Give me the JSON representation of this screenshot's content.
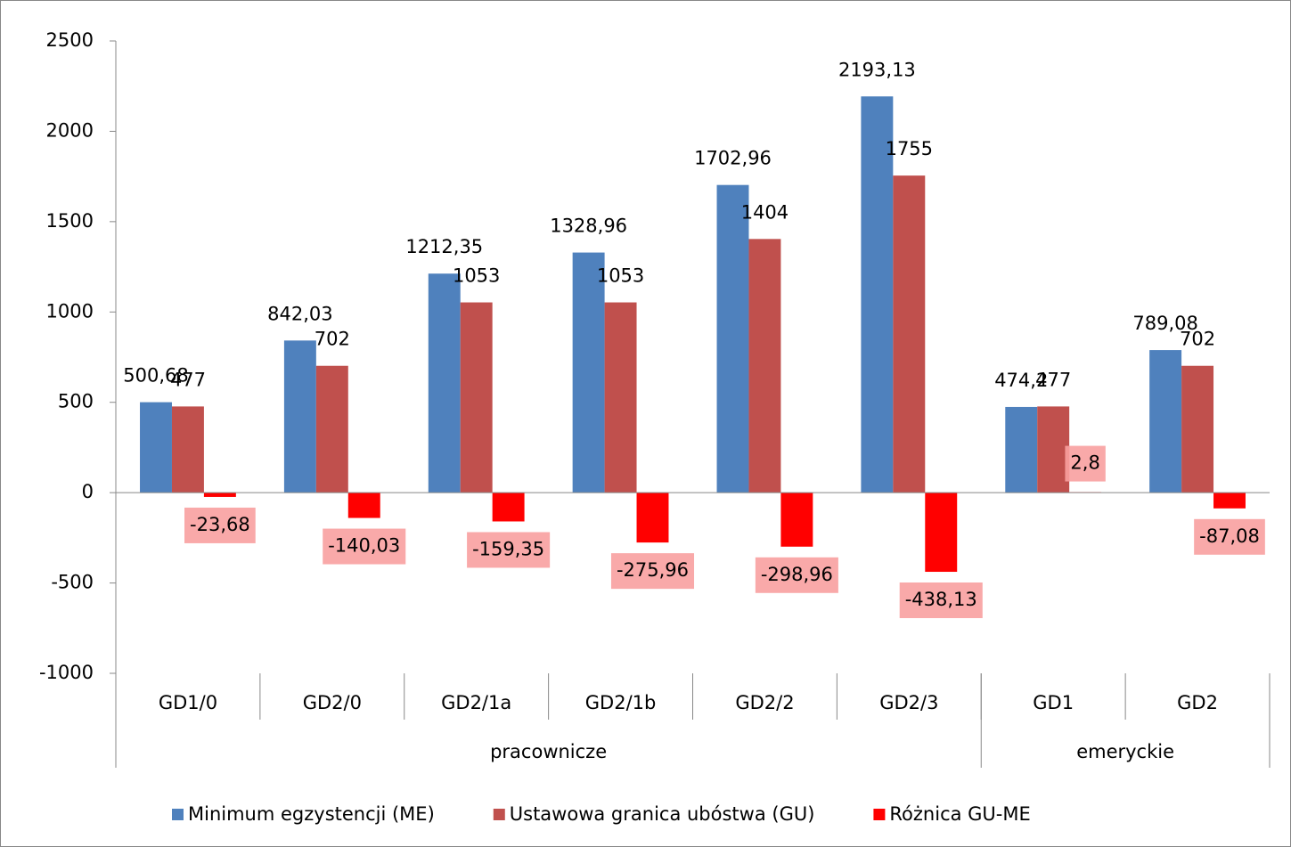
{
  "chart_data": {
    "type": "bar",
    "categories": [
      "GD1/0",
      "GD2/0",
      "GD2/1a",
      "GD2/1b",
      "GD2/2",
      "GD2/3",
      "GD1",
      "GD2"
    ],
    "groups": [
      {
        "name": "pracownicze",
        "count": 6
      },
      {
        "name": "emeryckie",
        "count": 2
      }
    ],
    "series": [
      {
        "name": "Minimum egzystencji (ME)",
        "color": "#4f81bd",
        "values": [
          500.68,
          842.03,
          1212.35,
          1328.96,
          1702.96,
          2193.13,
          474.2,
          789.08
        ],
        "value_labels": [
          "500,68",
          "842,03",
          "1212,35",
          "1328,96",
          "1702,96",
          "2193,13",
          "474,2",
          "789,08"
        ]
      },
      {
        "name": "Ustawowa granica ubóstwa (GU)",
        "color": "#c0504d",
        "values": [
          477,
          702,
          1053,
          1053,
          1404,
          1755,
          477,
          702
        ]
      },
      {
        "name": "Różnica GU-ME",
        "color": "#ff0000",
        "label_box": "#f8a0a0",
        "values": [
          -23.68,
          -140.03,
          -159.35,
          -275.96,
          -298.96,
          -438.13,
          2.8,
          -87.08
        ],
        "value_labels": [
          "-23,68",
          "-140,03",
          "-159,35",
          "-275,96",
          "-298,96",
          "-438,13",
          "2,8",
          "-87,08"
        ]
      }
    ],
    "ylim": [
      -1000,
      2500
    ],
    "yticks": [
      -1000,
      -500,
      0,
      500,
      1000,
      1500,
      2000,
      2500
    ],
    "legend": "bottom"
  }
}
